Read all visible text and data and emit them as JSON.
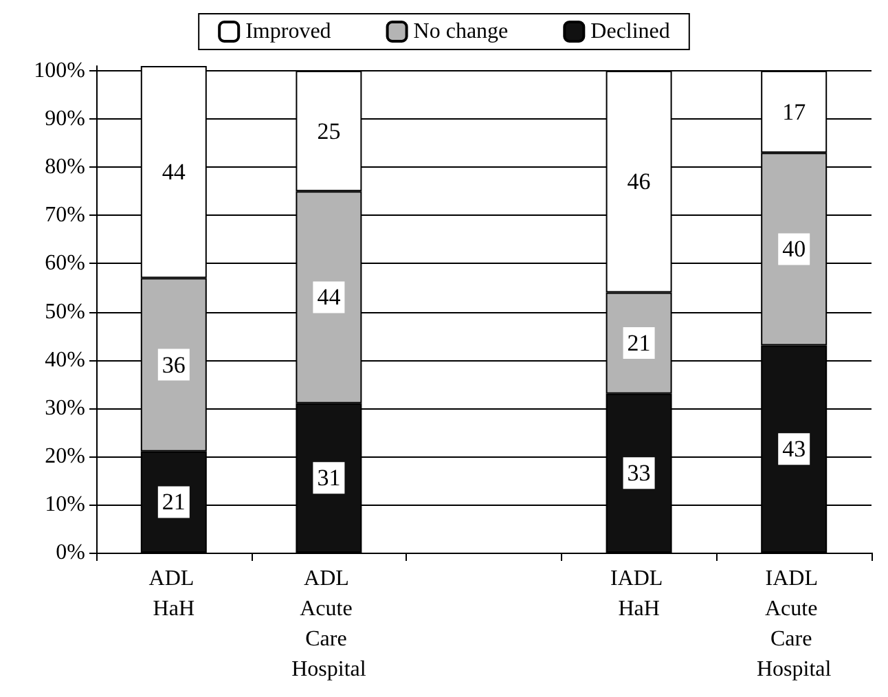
{
  "chart_data": {
    "type": "bar",
    "stacked": true,
    "categories": [
      "ADL HaH",
      "ADL Acute Care Hospital",
      null,
      "IADL HaH",
      "IADL Acute Care Hospital"
    ],
    "series": [
      {
        "name": "Declined",
        "color": "#111111",
        "values": [
          21,
          31,
          null,
          33,
          43
        ]
      },
      {
        "name": "No change",
        "color": "#b4b4b4",
        "values": [
          36,
          44,
          null,
          21,
          40
        ]
      },
      {
        "name": "Improved",
        "color": "#ffffff",
        "values": [
          44,
          25,
          null,
          46,
          17
        ]
      }
    ],
    "ylim": [
      0,
      101
    ],
    "yticks": [
      {
        "value": 0,
        "label": "0%"
      },
      {
        "value": 10,
        "label": "10%"
      },
      {
        "value": 20,
        "label": "20%"
      },
      {
        "value": 30,
        "label": "30%"
      },
      {
        "value": 40,
        "label": "40%"
      },
      {
        "value": 50,
        "label": "50%"
      },
      {
        "value": 60,
        "label": "60%"
      },
      {
        "value": 70,
        "label": "70%"
      },
      {
        "value": 80,
        "label": "80%"
      },
      {
        "value": 90,
        "label": "90%"
      },
      {
        "value": 100,
        "label": "100%"
      }
    ],
    "grid": "y",
    "legend": "top",
    "data_labels": true
  }
}
